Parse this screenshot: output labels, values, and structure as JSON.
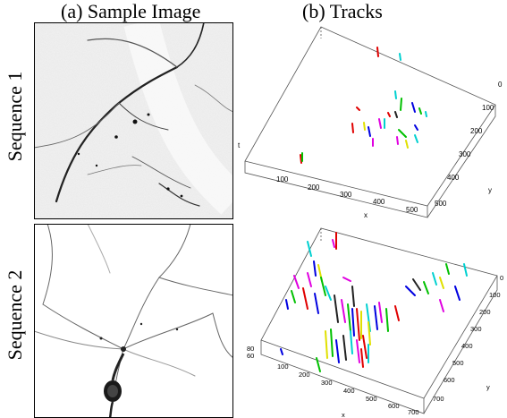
{
  "column_titles": {
    "sample": "(a) Sample Image",
    "tracks": "(b) Tracks"
  },
  "row_labels": [
    "Sequence 1",
    "Sequence 2"
  ],
  "plot1": {
    "axis_x_label": "x",
    "axis_y_label": "y",
    "axis_z_label": "t",
    "x_ticks": [
      "100",
      "200",
      "300",
      "400",
      "500"
    ],
    "y_ticks": [
      "0",
      "100",
      "200",
      "300",
      "400",
      "500"
    ]
  },
  "plot2": {
    "axis_x_label": "x",
    "axis_y_label": "y",
    "z_ticks": [
      "80",
      "60"
    ],
    "x_ticks": [
      "100",
      "200",
      "300",
      "400",
      "500",
      "600",
      "700"
    ],
    "y_ticks": [
      "0",
      "100",
      "200",
      "300",
      "400",
      "500",
      "600",
      "700"
    ]
  },
  "track_colors": [
    "#e00000",
    "#00c000",
    "#0000e0",
    "#00d0d0",
    "#e000e0",
    "#e0e000",
    "#202020",
    "#ff8000",
    "#404080"
  ]
}
